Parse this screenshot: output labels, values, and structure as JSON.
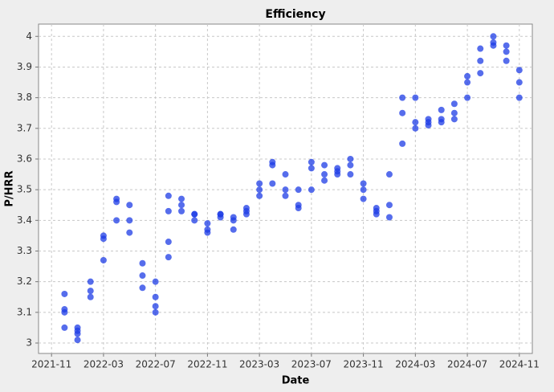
{
  "chart_data": {
    "type": "scatter",
    "title": "Efficiency",
    "x_label": "Date",
    "y_label": "P/HRR",
    "color": "#1e3ce6",
    "grid": true,
    "xlim": [
      "2021-10",
      "2024-12"
    ],
    "xticks": [
      "2021-11",
      "2022-03",
      "2022-07",
      "2022-11",
      "2023-03",
      "2023-07",
      "2023-11",
      "2024-03",
      "2024-07",
      "2024-11"
    ],
    "ylim": [
      2.966,
      4.04
    ],
    "yticks": [
      3,
      3.1,
      3.2,
      3.3,
      3.4,
      3.5,
      3.6,
      3.7,
      3.8,
      3.9,
      4
    ],
    "x": [
      "2021-12",
      "2021-12",
      "2021-12",
      "2021-12",
      "2022-01",
      "2022-01",
      "2022-01",
      "2022-01",
      "2022-02",
      "2022-02",
      "2022-02",
      "2022-03",
      "2022-03",
      "2022-03",
      "2022-04",
      "2022-04",
      "2022-04",
      "2022-05",
      "2022-05",
      "2022-05",
      "2022-06",
      "2022-06",
      "2022-06",
      "2022-07",
      "2022-07",
      "2022-07",
      "2022-07",
      "2022-08",
      "2022-08",
      "2022-08",
      "2022-08",
      "2022-09",
      "2022-09",
      "2022-09",
      "2022-10",
      "2022-10",
      "2022-10",
      "2022-11",
      "2022-11",
      "2022-11",
      "2022-12",
      "2022-12",
      "2022-12",
      "2023-01",
      "2023-01",
      "2023-01",
      "2023-02",
      "2023-02",
      "2023-02",
      "2023-03",
      "2023-03",
      "2023-03",
      "2023-04",
      "2023-04",
      "2023-04",
      "2023-05",
      "2023-05",
      "2023-05",
      "2023-06",
      "2023-06",
      "2023-06",
      "2023-07",
      "2023-07",
      "2023-07",
      "2023-08",
      "2023-08",
      "2023-08",
      "2023-09",
      "2023-09",
      "2023-09",
      "2023-10",
      "2023-10",
      "2023-10",
      "2023-11",
      "2023-11",
      "2023-11",
      "2023-12",
      "2023-12",
      "2023-12",
      "2024-01",
      "2024-01",
      "2024-01",
      "2024-02",
      "2024-02",
      "2024-02",
      "2024-03",
      "2024-03",
      "2024-03",
      "2024-04",
      "2024-04",
      "2024-04",
      "2024-05",
      "2024-05",
      "2024-05",
      "2024-06",
      "2024-06",
      "2024-06",
      "2024-07",
      "2024-07",
      "2024-07",
      "2024-08",
      "2024-08",
      "2024-08",
      "2024-09",
      "2024-09",
      "2024-09",
      "2024-10",
      "2024-10",
      "2024-10",
      "2024-11",
      "2024-11",
      "2024-11"
    ],
    "values": [
      3.1,
      3.16,
      3.11,
      3.05,
      3.03,
      3.01,
      3.05,
      3.04,
      3.17,
      3.15,
      3.2,
      3.27,
      3.34,
      3.35,
      3.4,
      3.46,
      3.47,
      3.45,
      3.4,
      3.36,
      3.26,
      3.22,
      3.18,
      3.12,
      3.1,
      3.15,
      3.2,
      3.28,
      3.33,
      3.43,
      3.48,
      3.45,
      3.47,
      3.43,
      3.42,
      3.42,
      3.4,
      3.39,
      3.37,
      3.36,
      3.42,
      3.41,
      3.42,
      3.37,
      3.4,
      3.41,
      3.42,
      3.44,
      3.43,
      3.48,
      3.5,
      3.52,
      3.52,
      3.58,
      3.59,
      3.55,
      3.5,
      3.48,
      3.5,
      3.45,
      3.44,
      3.5,
      3.57,
      3.59,
      3.53,
      3.55,
      3.58,
      3.56,
      3.55,
      3.57,
      3.58,
      3.6,
      3.55,
      3.52,
      3.5,
      3.47,
      3.44,
      3.43,
      3.42,
      3.41,
      3.45,
      3.55,
      3.65,
      3.75,
      3.8,
      3.8,
      3.72,
      3.7,
      3.72,
      3.73,
      3.71,
      3.76,
      3.73,
      3.72,
      3.73,
      3.75,
      3.78,
      3.8,
      3.85,
      3.87,
      3.88,
      3.92,
      3.96,
      3.98,
      4.0,
      3.97,
      3.97,
      3.95,
      3.92,
      3.89,
      3.85,
      3.8
    ]
  }
}
